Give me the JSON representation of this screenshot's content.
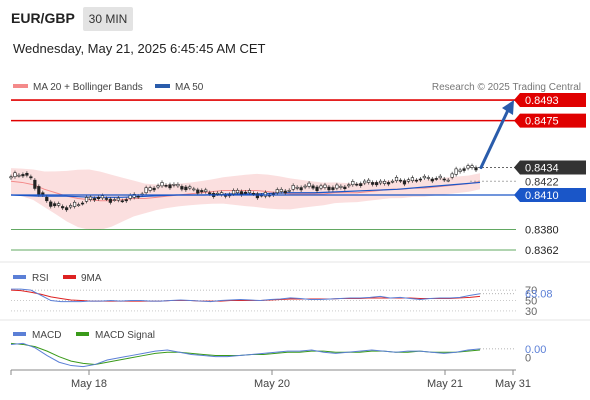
{
  "header": {
    "pair": "EUR/GBP",
    "timeframe": "30 MIN",
    "datetime": "Wednesday, May 21, 2025 6:45:45 AM CET"
  },
  "legend": {
    "ma20_label": "MA 20 + Bollinger Bands",
    "ma50_label": "MA 50",
    "credit": "Research © 2025 Trading Central",
    "rsi_label": "RSI",
    "rsi_ma_label": "9MA",
    "macd_label": "MACD",
    "macd_signal_label": "MACD Signal"
  },
  "colors": {
    "resistance": "#e00000",
    "support": "#2e8b2e",
    "ma50": "#1a56c8",
    "ma20_band": "#f48a8a",
    "current_price_tag": "#333333",
    "rsi": "#5b7fd6",
    "rsi_ma": "#dd2222",
    "macd": "#5b7fd6",
    "macd_signal": "#3a9a1a",
    "arrow": "#2a5cab"
  },
  "chart_data": {
    "type": "candlestick",
    "x_ticks": [
      "May 18",
      "May 20",
      "May 21",
      "May 31"
    ],
    "ylim": [
      0.8355,
      0.85
    ],
    "price_levels": [
      {
        "value": 0.8493,
        "label": "0.8493",
        "kind": "resistance"
      },
      {
        "value": 0.8475,
        "label": "0.8475",
        "kind": "resistance"
      },
      {
        "value": 0.8434,
        "label": "0.8434",
        "kind": "current"
      },
      {
        "value": 0.8422,
        "label": "0.8422",
        "kind": "ma20"
      },
      {
        "value": 0.841,
        "label": "0.8410",
        "kind": "pivot"
      },
      {
        "value": 0.838,
        "label": "0.8380",
        "kind": "support"
      },
      {
        "value": 0.8362,
        "label": "0.8362",
        "kind": "support"
      }
    ],
    "price_series": [
      0.8425,
      0.8427,
      0.8429,
      0.8423,
      0.8412,
      0.8404,
      0.8401,
      0.8399,
      0.84,
      0.8403,
      0.8406,
      0.8408,
      0.8407,
      0.8406,
      0.8405,
      0.8407,
      0.8409,
      0.8412,
      0.8416,
      0.8418,
      0.8419,
      0.8418,
      0.8417,
      0.8415,
      0.8414,
      0.8412,
      0.8411,
      0.841,
      0.8411,
      0.8413,
      0.8412,
      0.8411,
      0.8409,
      0.8411,
      0.8413,
      0.8414,
      0.8416,
      0.8417,
      0.8418,
      0.8416,
      0.8417,
      0.8416,
      0.8417,
      0.8419,
      0.842,
      0.8421,
      0.8421,
      0.842,
      0.8422,
      0.8423,
      0.8422,
      0.8423,
      0.8425,
      0.8424,
      0.8425,
      0.8423,
      0.8428,
      0.8433,
      0.8434
    ],
    "ma20_series": [
      0.8422,
      0.8421,
      0.8419,
      0.8415,
      0.8412,
      0.8409,
      0.8407,
      0.8406,
      0.8405,
      0.8405,
      0.8406,
      0.8407,
      0.8407,
      0.8408,
      0.8409,
      0.841,
      0.8411,
      0.8412,
      0.8413,
      0.8414,
      0.8414,
      0.8414,
      0.8414,
      0.8413,
      0.8412,
      0.8411,
      0.8411,
      0.8411,
      0.8411,
      0.8412,
      0.8412,
      0.8412,
      0.8413,
      0.8414,
      0.8415,
      0.8415,
      0.8416,
      0.8416,
      0.8417,
      0.8418,
      0.8419,
      0.842,
      0.8422
    ],
    "ma50_series": [
      0.841,
      0.8409,
      0.8409,
      0.8408,
      0.8408,
      0.8409,
      0.841,
      0.841,
      0.8411,
      0.8411,
      0.8412,
      0.8412,
      0.8413,
      0.8414,
      0.8415,
      0.8417,
      0.8419,
      0.8421
    ],
    "forecast": {
      "from": 0.8434,
      "to": 0.8493
    },
    "rsi": {
      "current": 63.08,
      "current_label": "63.08",
      "levels": [
        70,
        50,
        30
      ],
      "level_labels": [
        "70",
        "50",
        "30"
      ],
      "series": [
        72,
        72,
        70,
        60,
        50,
        48,
        48,
        48,
        49,
        49,
        50,
        49,
        50,
        50,
        49,
        49,
        50,
        51,
        50,
        49,
        48,
        50,
        51,
        52,
        51,
        50,
        52,
        53,
        55,
        54,
        52,
        52,
        53,
        54,
        55,
        55,
        56,
        58,
        55,
        56,
        54,
        52,
        54,
        55,
        55,
        56,
        60,
        63
      ],
      "ma_series": [
        70,
        69,
        66,
        62,
        57,
        54,
        51,
        50,
        49,
        49,
        49,
        49,
        49,
        49,
        49,
        49,
        50,
        50,
        50,
        49,
        49,
        49,
        50,
        50,
        50,
        50,
        51,
        52,
        53,
        53,
        53,
        53,
        53,
        54,
        54,
        54,
        55,
        55,
        55,
        55,
        55,
        54,
        54,
        54,
        54,
        55,
        56,
        58
      ]
    },
    "macd": {
      "current_label": "0.00",
      "zero_label": "0",
      "macd_series": [
        0.0008,
        0.0009,
        0.0005,
        -0.0002,
        -0.0008,
        -0.0011,
        -0.0012,
        -0.001,
        -0.0006,
        -0.0004,
        -0.0002,
        0.0,
        0.0002,
        0.0003,
        0.0001,
        -0.0001,
        -0.0002,
        -0.0003,
        -0.0003,
        -0.0002,
        -0.0001,
        0.0,
        0.0001,
        0.0002,
        0.0002,
        0.0003,
        0.0001,
        0.0,
        0.0001,
        0.0002,
        0.0003,
        0.0002,
        0.0001,
        0.0002,
        0.0002,
        0.0001,
        0.0,
        0.0001,
        0.0003,
        0.0004
      ],
      "signal_series": [
        0.0009,
        0.0008,
        0.0006,
        0.0002,
        -0.0003,
        -0.0007,
        -0.0009,
        -0.001,
        -0.0008,
        -0.0006,
        -0.0004,
        -0.0002,
        0.0,
        0.0001,
        0.0001,
        0.0,
        -0.0001,
        -0.0002,
        -0.0002,
        -0.0002,
        -0.0001,
        -0.0001,
        0.0,
        0.0001,
        0.0001,
        0.0002,
        0.0002,
        0.0001,
        0.0001,
        0.0001,
        0.0002,
        0.0002,
        0.0001,
        0.0001,
        0.0002,
        0.0001,
        0.0001,
        0.0001,
        0.0002,
        0.0003
      ],
      "ylim": [
        -0.0015,
        0.0012
      ]
    }
  }
}
